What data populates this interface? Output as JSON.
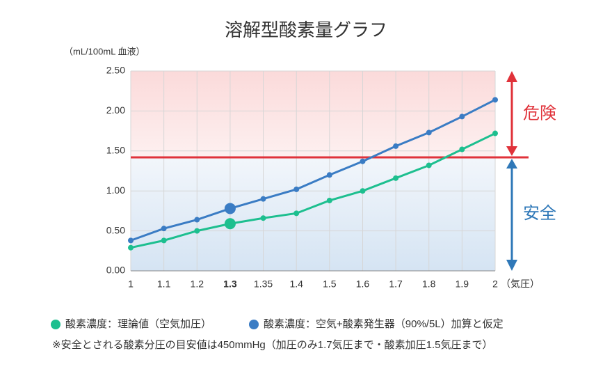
{
  "chart_data": {
    "type": "line",
    "title": "溶解型酸素量グラフ",
    "y_label": "（mL/100mL 血液）",
    "x_label": "（気圧）",
    "categories": [
      "1",
      "1.1",
      "1.2",
      "1.3",
      "1.35",
      "1.4",
      "1.5",
      "1.6",
      "1.7",
      "1.8",
      "1.9",
      "2"
    ],
    "highlight_index": 3,
    "series": [
      {
        "name": "酸素濃度：理論値（空気加圧）",
        "color": "#1dbf8f",
        "values": [
          0.29,
          0.38,
          0.5,
          0.59,
          0.66,
          0.72,
          0.88,
          1.0,
          1.16,
          1.32,
          1.52,
          1.72
        ]
      },
      {
        "name": "酸素濃度：空気+酸素発生器（90%/5L）加算と仮定",
        "color": "#3a7cc4",
        "values": [
          0.38,
          0.53,
          0.64,
          0.78,
          0.9,
          1.02,
          1.2,
          1.37,
          1.56,
          1.73,
          1.93,
          2.14
        ]
      }
    ],
    "ylim": [
      0,
      2.5
    ],
    "yticks": [
      {
        "value": 0,
        "label": "0.00"
      },
      {
        "value": 0.5,
        "label": "0.50"
      },
      {
        "value": 1,
        "label": "1.00"
      },
      {
        "value": 1.5,
        "label": "1.50"
      },
      {
        "value": 2,
        "label": "2.00"
      },
      {
        "value": 2.5,
        "label": "2.50"
      }
    ],
    "grid": true,
    "threshold": 1.42,
    "danger_label": "危険",
    "danger_color": "#e0323a",
    "safe_label": "安全",
    "safe_color": "#2f78b8",
    "note": "※安全とされる酸素分圧の目安値は450mmHg（加圧のみ1.7気圧まで・酸素加圧1.5気圧まで）"
  }
}
